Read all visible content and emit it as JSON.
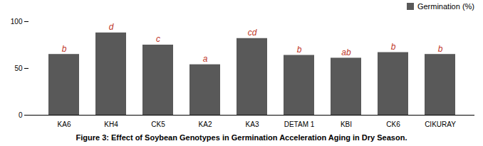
{
  "chart_data": {
    "type": "bar",
    "categories": [
      "KA6",
      "KH4",
      "CK5",
      "KA2",
      "KA3",
      "DETAM 1",
      "KBI",
      "CK6",
      "CIKURAY"
    ],
    "series": [
      {
        "name": "Germination (%)",
        "color": "#595959",
        "values": [
          65,
          88,
          75,
          54,
          82,
          64,
          61,
          67,
          65
        ]
      }
    ],
    "annotations": [
      {
        "category": "KA6",
        "text": "b",
        "color": "#c0392b"
      },
      {
        "category": "KH4",
        "text": "d",
        "color": "#c0392b"
      },
      {
        "category": "CK5",
        "text": "c",
        "color": "#c0392b"
      },
      {
        "category": "KA2",
        "text": "a",
        "color": "#c0392b"
      },
      {
        "category": "KA3",
        "text": "cd",
        "color": "#c0392b"
      },
      {
        "category": "DETAM 1",
        "text": "b",
        "color": "#c0392b"
      },
      {
        "category": "KBI",
        "text": "ab",
        "color": "#c0392b"
      },
      {
        "category": "CK6",
        "text": "b",
        "color": "#c0392b"
      },
      {
        "category": "CIKURAY",
        "text": "b",
        "color": "#c0392b"
      }
    ],
    "ylim": [
      0,
      100
    ],
    "yticks": [
      0,
      50,
      100
    ],
    "legend": "upper right",
    "grid": false,
    "caption": "Figure 3: Effect of Soybean Genotypes in Germination Acceleration Aging in Dry Season."
  }
}
